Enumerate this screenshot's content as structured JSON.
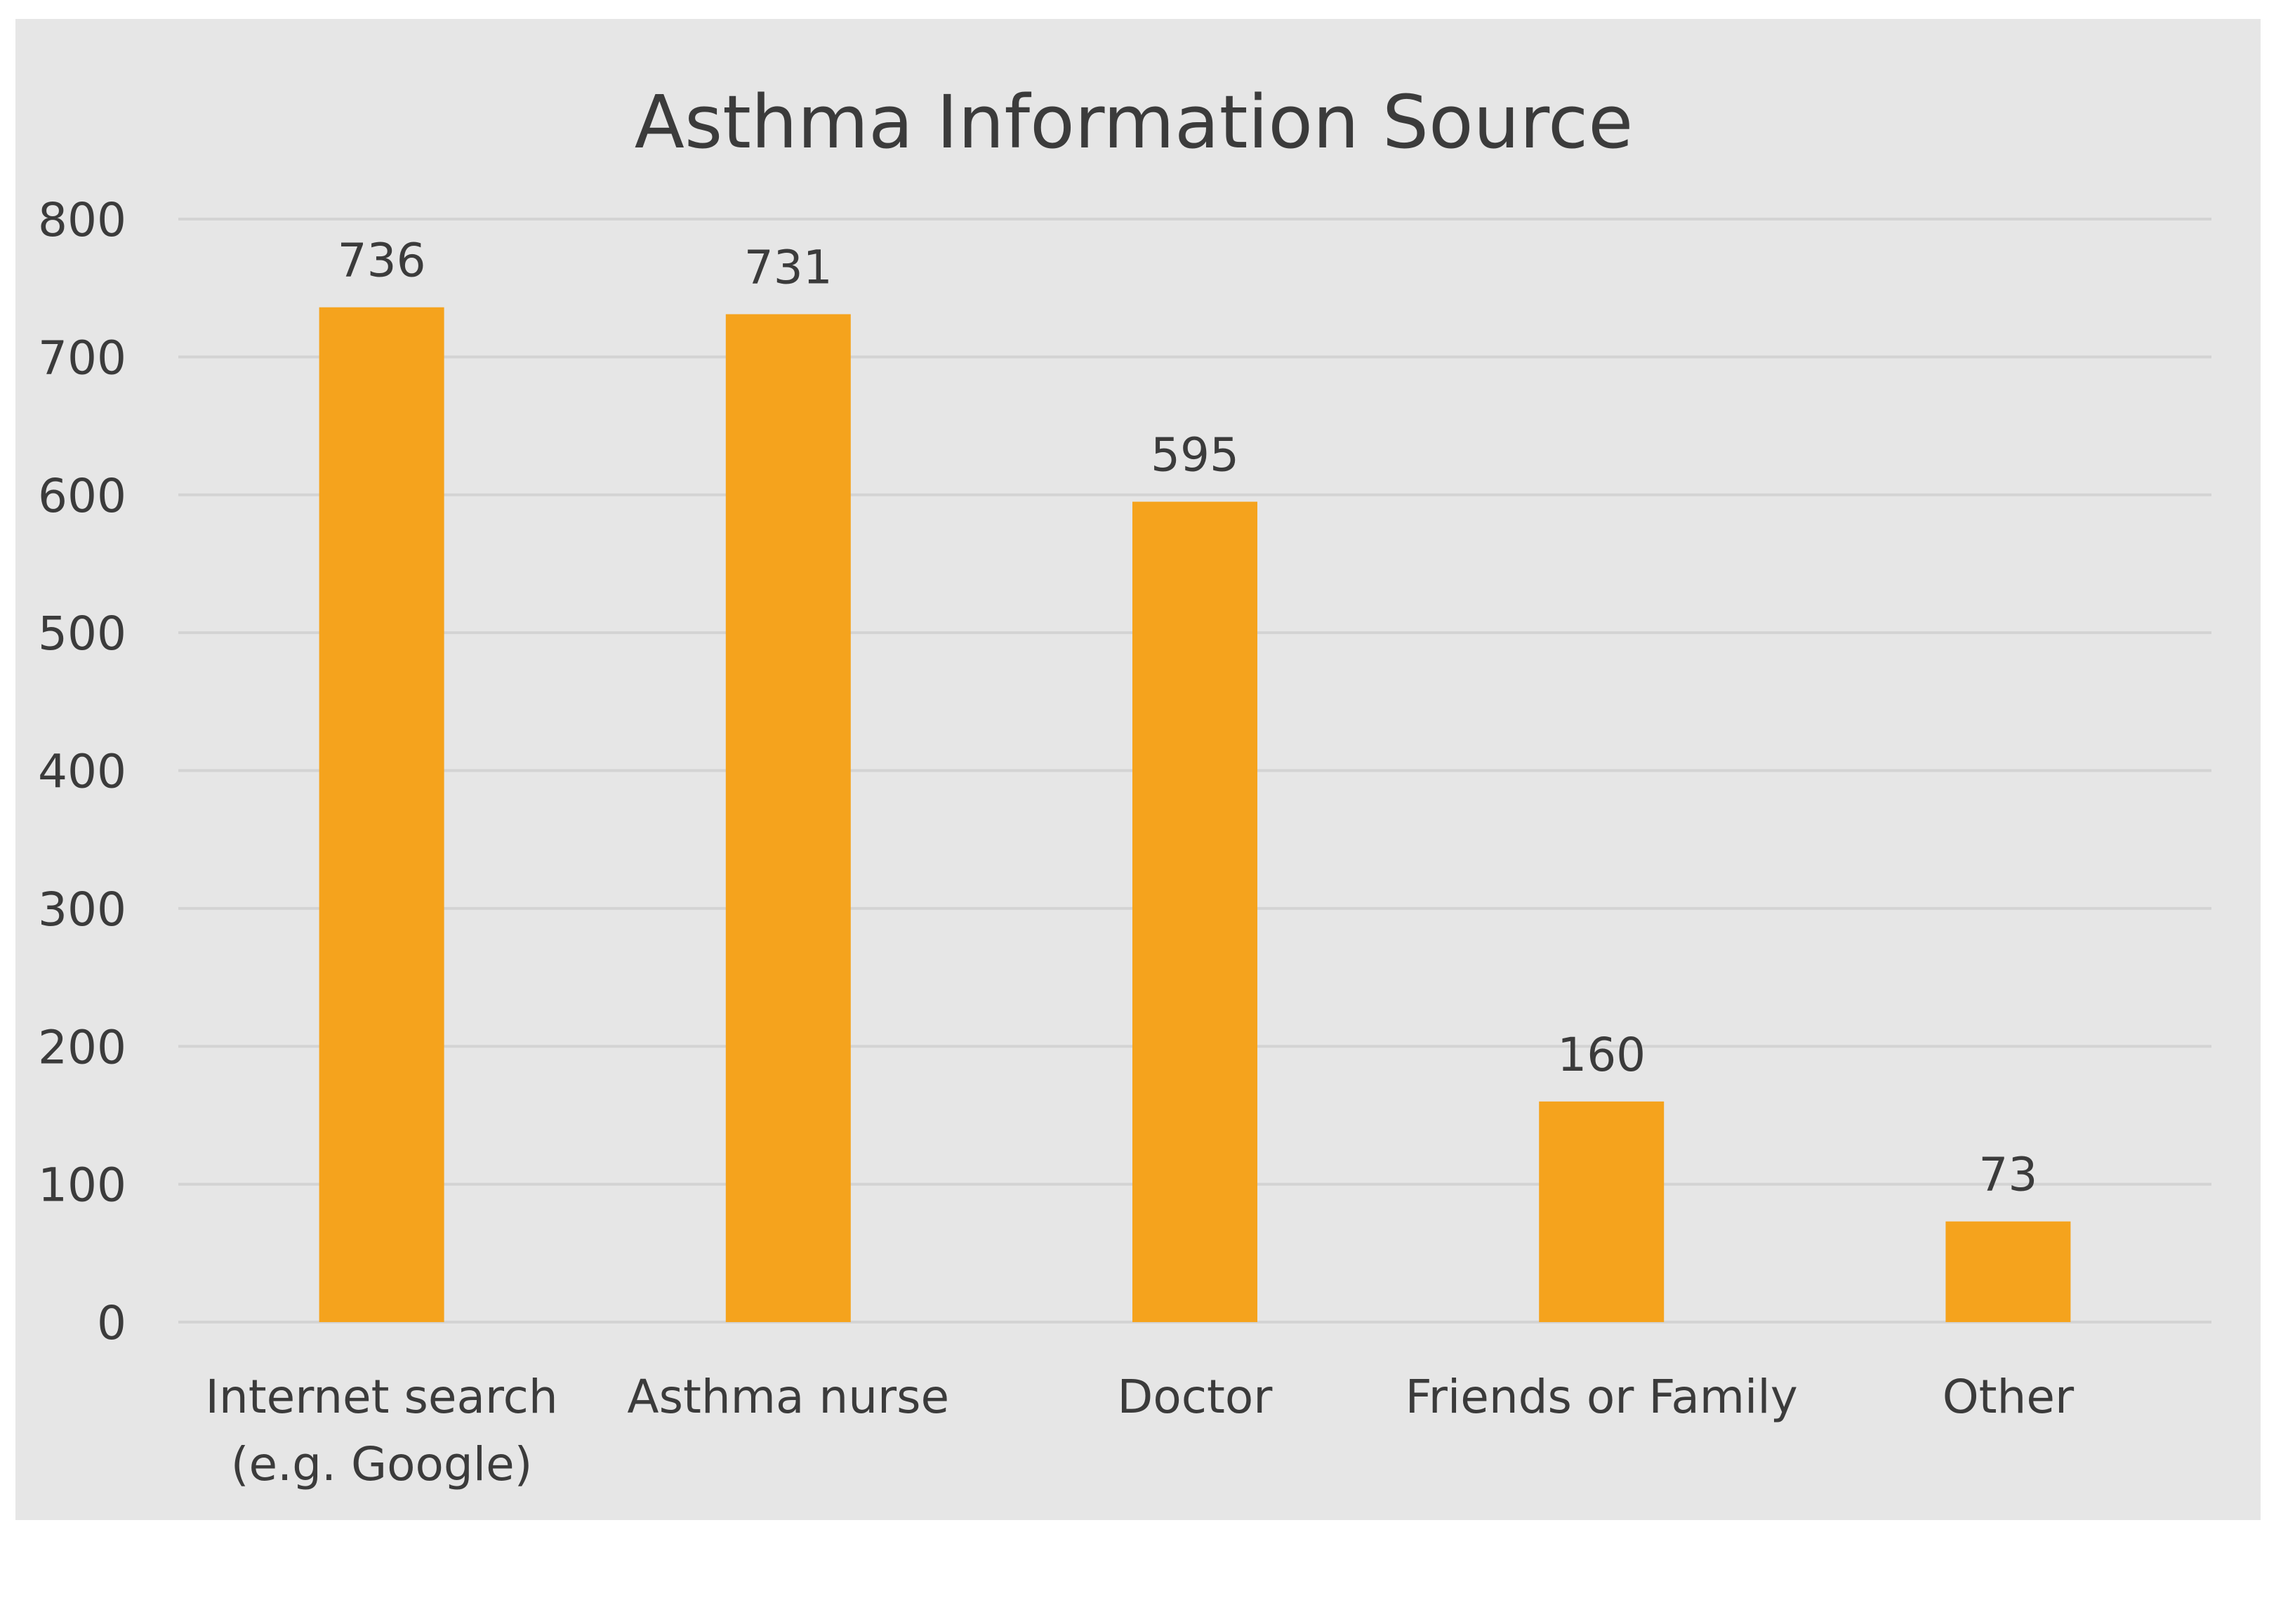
{
  "chart_data": {
    "type": "bar",
    "title": "Asthma Information Source",
    "categories": [
      [
        "Internet search",
        "(e.g. Google)"
      ],
      [
        "Asthma nurse"
      ],
      [
        "Doctor"
      ],
      [
        "Friends or Family"
      ],
      [
        "Other"
      ]
    ],
    "values": [
      736,
      731,
      595,
      160,
      73
    ],
    "data_labels": [
      "736",
      "731",
      "595",
      "160",
      "73"
    ],
    "xlabel": "",
    "ylabel": "",
    "ylim": [
      0,
      800
    ],
    "yticks": [
      0,
      100,
      200,
      300,
      400,
      500,
      600,
      700,
      800
    ],
    "grid": true,
    "legend": "none",
    "colors": {
      "bar": "#f5a31d",
      "panel": "#e6e6e6",
      "grid": "#d3d3d3",
      "text": "#3b3b3b"
    }
  }
}
